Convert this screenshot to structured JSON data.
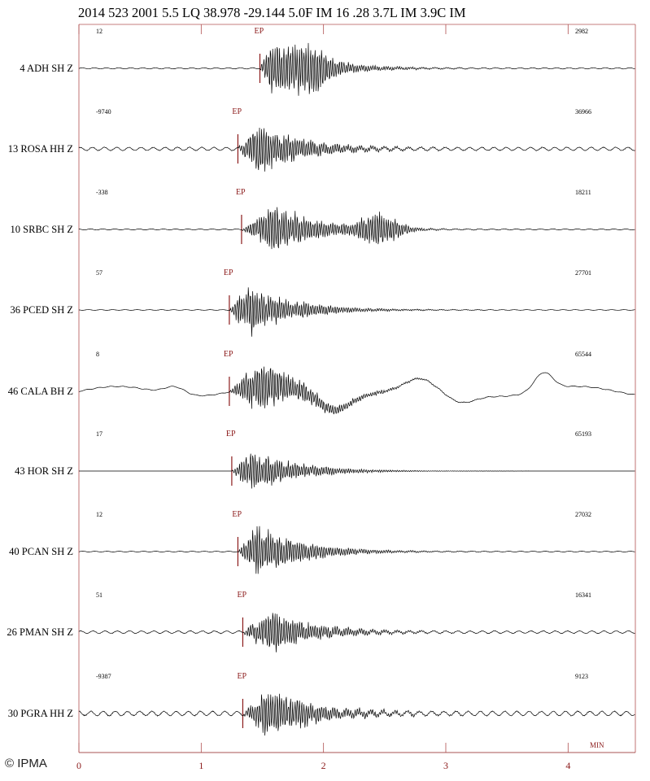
{
  "header": {
    "event_line": "2014  523 2001  5.5 LQ 38.978 -29.144  5.0F  IM 16 .28 3.7L IM 3.9C IM"
  },
  "copyright": "© IPMA",
  "colors": {
    "trace": "#000000",
    "axis": "#8b1a1a",
    "frame": "#b05050"
  },
  "chart_data": {
    "type": "line",
    "title": "2014  523 2001  5.5 LQ 38.978 -29.144  5.0F  IM 16 .28 3.7L IM 3.9C IM",
    "xlabel": "MIN",
    "ylabel": "",
    "xlim": [
      0,
      4.55
    ],
    "x_ticks": [
      "0",
      "1",
      "2",
      "3",
      "4"
    ],
    "pick_label": "EP",
    "grid": false,
    "series": [
      {
        "name": "4 ADH  SH Z",
        "left_count": "12",
        "right_count": "2982",
        "ep_time_min": 1.48,
        "peak_time_min": 1.55,
        "noise": 0.06,
        "amp": 1.0,
        "low_freq": "none"
      },
      {
        "name": "13 ROSA  HH Z",
        "left_count": "-9740",
        "right_count": "36966",
        "ep_time_min": 1.3,
        "peak_time_min": 1.45,
        "noise": 0.16,
        "amp": 1.0,
        "low_freq": "none"
      },
      {
        "name": "10 SRBC  SH Z",
        "left_count": "-338",
        "right_count": "18211",
        "ep_time_min": 1.33,
        "peak_time_min": 1.6,
        "noise": 0.05,
        "amp": 0.9,
        "low_freq": "none"
      },
      {
        "name": "36 PCED  SH Z",
        "left_count": "57",
        "right_count": "27701",
        "ep_time_min": 1.23,
        "peak_time_min": 1.35,
        "noise": 0.03,
        "amp": 1.0,
        "low_freq": "none"
      },
      {
        "name": "46 CALA  BH Z",
        "left_count": "8",
        "right_count": "65544",
        "ep_time_min": 1.23,
        "peak_time_min": 1.45,
        "noise": 0.04,
        "amp": 1.0,
        "low_freq": "swell"
      },
      {
        "name": "43 HOR  SH Z",
        "left_count": "17",
        "right_count": "65193",
        "ep_time_min": 1.25,
        "peak_time_min": 1.4,
        "noise": 0.0,
        "amp": 0.8,
        "low_freq": "none"
      },
      {
        "name": "40 PCAN  SH Z",
        "left_count": "12",
        "right_count": "27032",
        "ep_time_min": 1.3,
        "peak_time_min": 1.45,
        "noise": 0.04,
        "amp": 1.0,
        "low_freq": "none"
      },
      {
        "name": "26 PMAN  SH Z",
        "left_count": "51",
        "right_count": "16341",
        "ep_time_min": 1.34,
        "peak_time_min": 1.55,
        "noise": 0.12,
        "amp": 0.8,
        "low_freq": "none"
      },
      {
        "name": "30 PGRA  HH Z",
        "left_count": "-9387",
        "right_count": "9123",
        "ep_time_min": 1.34,
        "peak_time_min": 1.55,
        "noise": 0.22,
        "amp": 1.0,
        "low_freq": "none"
      }
    ]
  }
}
